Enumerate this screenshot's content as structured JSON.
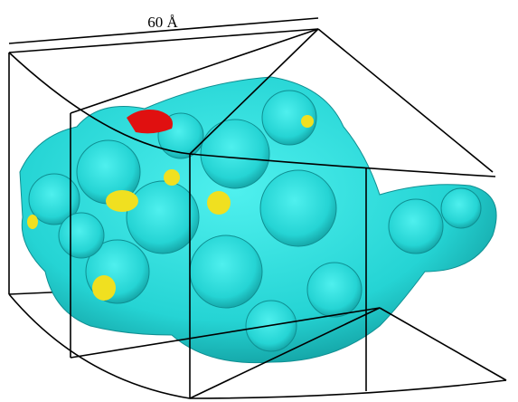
{
  "label": "60 Å"
}
